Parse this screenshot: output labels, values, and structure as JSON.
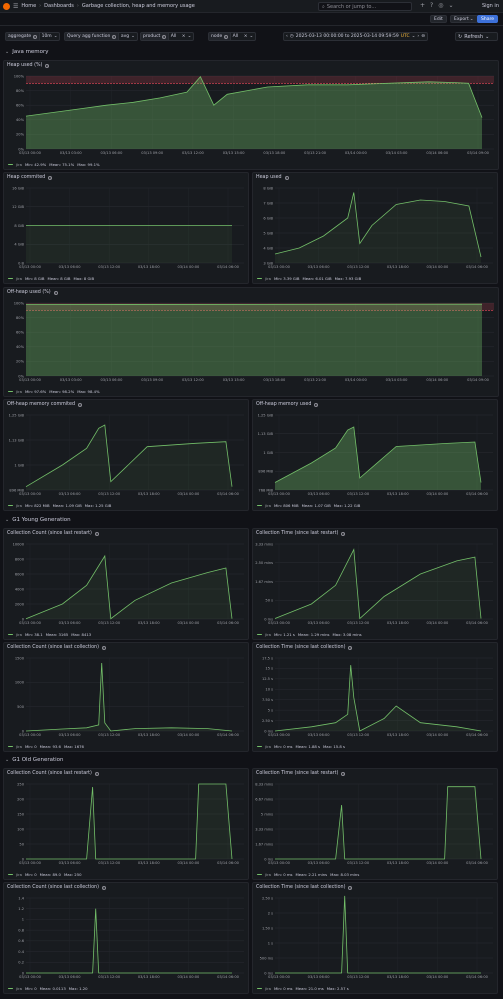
{
  "topbar": {
    "home": "Home",
    "dashboards": "Dashboards",
    "title": "Garbage collection, heap and memory usage",
    "search_placeholder": "Search or jump to...",
    "shortcut": "ctrl+k",
    "sign_in": "Sign in"
  },
  "actions": {
    "edit": "Edit",
    "export": "Export",
    "share": "Share"
  },
  "variables": {
    "aggregate_label": "aggregate",
    "aggregate_value": "10m",
    "query_fn_label": "Query agg function",
    "query_fn_value": "avg",
    "product_label": "product",
    "product_value": "All",
    "node_label": "node",
    "node_value": "All"
  },
  "time": {
    "range": "2025-03-13 00:00:00 to 2025-03-14 09:59:59",
    "tz": "UTC",
    "refresh": "Refresh"
  },
  "colors": {
    "series": "#73bf69",
    "threshold": "#f2495c",
    "bg": "#111217",
    "panel": "#181b1f"
  },
  "rows": {
    "java": "Java memory",
    "young": "G1 Young Generation",
    "old": "G1 Old Generation"
  },
  "panels": [
    {
      "id": "heap_pct",
      "title": "Heap used (%)",
      "series": "jira",
      "legend": {
        "min": "Min: 42.9%",
        "mean": "Mean: 75.1%",
        "max": "Max: 99.1%"
      },
      "yticks": [
        "100%",
        "80%",
        "60%",
        "40%",
        "20%",
        "0%"
      ],
      "xticks": [
        "03/13 00:00",
        "03/13 03:00",
        "03/13 06:00",
        "03/13 09:00",
        "03/13 12:00",
        "03/13 15:00",
        "03/13 18:00",
        "03/13 21:00",
        "03/14 00:00",
        "03/14 03:00",
        "03/14 06:00",
        "03/14 09:00"
      ]
    },
    {
      "id": "heap_committed",
      "title": "Heap commited",
      "series": "jira",
      "legend": {
        "min": "Min: 8 GiB",
        "mean": "Mean: 8 GiB",
        "max": "Max: 8 GiB"
      },
      "yticks": [
        "16 GiB",
        "12 GiB",
        "8 GiB",
        "4 GiB",
        "0 B"
      ],
      "xticks": [
        "03/13 00:00",
        "03/13 06:00",
        "03/13 12:00",
        "03/13 18:00",
        "03/14 00:00",
        "03/14 06:00"
      ]
    },
    {
      "id": "heap_used",
      "title": "Heap used",
      "series": "jira",
      "legend": {
        "min": "Min: 3.39 GiB",
        "mean": "Mean: 6.01 GiB",
        "max": "Max: 7.93 GiB"
      },
      "yticks": [
        "8 GiB",
        "7 GiB",
        "6 GiB",
        "5 GiB",
        "4 GiB",
        "3 GiB"
      ],
      "xticks": [
        "03/13 00:00",
        "03/13 06:00",
        "03/13 12:00",
        "03/13 18:00",
        "03/14 00:00",
        "03/14 06:00"
      ]
    },
    {
      "id": "offheap_pct",
      "title": "Off-heap used (%)",
      "series": "jira",
      "legend": {
        "min": "Min: 97.6%",
        "mean": "Mean: 98.2%",
        "max": "Max: 98.4%"
      },
      "yticks": [
        "100%",
        "80%",
        "60%",
        "40%",
        "20%",
        "0%"
      ],
      "xticks": [
        "03/13 00:00",
        "03/13 03:00",
        "03/13 06:00",
        "03/13 09:00",
        "03/13 12:00",
        "03/13 15:00",
        "03/13 18:00",
        "03/13 21:00",
        "03/14 00:00",
        "03/14 03:00",
        "03/14 06:00",
        "03/14 09:00"
      ]
    },
    {
      "id": "offheap_committed",
      "title": "Off-heap memory commited",
      "series": "jira",
      "legend": {
        "min": "Min: 822 MiB",
        "mean": "Mean: 1.09 GiB",
        "max": "Max: 1.25 GiB"
      },
      "yticks": [
        "1.25 GiB",
        "1.13 GiB",
        "1 GiB",
        "896 MiB"
      ],
      "xticks": [
        "03/13 00:00",
        "03/13 06:00",
        "03/13 12:00",
        "03/13 18:00",
        "03/14 00:00",
        "03/14 06:00"
      ]
    },
    {
      "id": "offheap_used",
      "title": "Off-heap memory used",
      "series": "jira",
      "legend": {
        "min": "Min: 806 MiB",
        "mean": "Mean: 1.07 GiB",
        "max": "Max: 1.22 GiB"
      },
      "yticks": [
        "1.25 GiB",
        "1.13 GiB",
        "1 GiB",
        "896 MiB",
        "768 MiB"
      ],
      "xticks": [
        "03/13 00:00",
        "03/13 06:00",
        "03/13 12:00",
        "03/13 18:00",
        "03/14 00:00",
        "03/14 06:00"
      ]
    },
    {
      "id": "young_cnt_restart",
      "title": "Collection Count (since last restart)",
      "series": "jira",
      "legend": {
        "min": "Min: 38.1",
        "mean": "Mean: 3165",
        "max": "Max: 8413"
      },
      "yticks": [
        "10000",
        "8000",
        "6000",
        "4000",
        "2000",
        "0"
      ],
      "xticks": [
        "03/13 00:00",
        "03/13 06:00",
        "03/13 12:00",
        "03/13 18:00",
        "03/14 00:00",
        "03/14 06:00"
      ]
    },
    {
      "id": "young_time_restart",
      "title": "Collection Time (since last restart)",
      "series": "jira",
      "legend": {
        "min": "Min: 1.21 s",
        "mean": "Mean: 1.29 mins",
        "max": "Max: 3.08 mins"
      },
      "yticks": [
        "3.33 mins",
        "2.50 mins",
        "1.67 mins",
        "50 s",
        "0 ms"
      ],
      "xticks": [
        "03/13 00:00",
        "03/13 06:00",
        "03/13 12:00",
        "03/13 18:00",
        "03/14 00:00",
        "03/14 06:00"
      ]
    },
    {
      "id": "young_cnt_coll",
      "title": "Collection Count (since last collection)",
      "series": "jira",
      "legend": {
        "min": "Min: 0",
        "mean": "Mean: 93.6",
        "max": "Max: 1676"
      },
      "yticks": [
        "1500",
        "1000",
        "500",
        "0"
      ],
      "xticks": [
        "03/13 00:00",
        "03/13 06:00",
        "03/13 12:00",
        "03/13 18:00",
        "03/14 00:00",
        "03/14 06:00"
      ]
    },
    {
      "id": "young_time_coll",
      "title": "Collection Time (since last collection)",
      "series": "jira",
      "legend": {
        "min": "Min: 0 ms",
        "mean": "Mean: 1.88 s",
        "max": "Max: 15.8 s"
      },
      "yticks": [
        "17.5 s",
        "15 s",
        "12.5 s",
        "10 s",
        "7.50 s",
        "5 s",
        "2.50 s",
        "0 ms"
      ],
      "xticks": [
        "03/13 00:00",
        "03/13 06:00",
        "03/13 12:00",
        "03/13 18:00",
        "03/14 00:00",
        "03/14 06:00"
      ]
    },
    {
      "id": "old_cnt_restart",
      "title": "Collection Count (since last restart)",
      "series": "jira",
      "legend": {
        "min": "Min: 0",
        "mean": "Mean: 89.0",
        "max": "Max: 250"
      },
      "yticks": [
        "250",
        "200",
        "150",
        "100",
        "50",
        "0"
      ],
      "xticks": [
        "03/13 00:00",
        "03/13 06:00",
        "03/13 12:00",
        "03/13 18:00",
        "03/14 00:00",
        "03/14 06:00"
      ]
    },
    {
      "id": "old_time_restart",
      "title": "Collection Time (since last restart)",
      "series": "jira",
      "legend": {
        "min": "Min: 0 ms",
        "mean": "Mean: 2.21 mins",
        "max": "Max: 8.03 mins"
      },
      "yticks": [
        "8.33 mins",
        "6.67 mins",
        "5 mins",
        "3.33 mins",
        "1.67 mins",
        "0 ms"
      ],
      "xticks": [
        "03/13 00:00",
        "03/13 06:00",
        "03/13 12:00",
        "03/13 18:00",
        "03/14 00:00",
        "03/14 06:00"
      ]
    },
    {
      "id": "old_cnt_coll",
      "title": "Collection Count (since last collection)",
      "series": "jira",
      "legend": {
        "min": "Min: 0",
        "mean": "Mean: 0.0113",
        "max": "Max: 1.20"
      },
      "yticks": [
        "1.4",
        "1.2",
        "1",
        "0.8",
        "0.6",
        "0.4",
        "0.2",
        "0"
      ],
      "xticks": [
        "03/13 00:00",
        "03/13 06:00",
        "03/13 12:00",
        "03/13 18:00",
        "03/14 00:00",
        "03/14 06:00"
      ]
    },
    {
      "id": "old_time_coll",
      "title": "Collection Time (since last collection)",
      "series": "jira",
      "legend": {
        "min": "Min: 0 ms",
        "mean": "Mean: 21.0 ms",
        "max": "Max: 2.57 s"
      },
      "yticks": [
        "2.50 s",
        "2 s",
        "1.50 s",
        "1 s",
        "500 ms",
        "0 ms"
      ],
      "xticks": [
        "03/13 00:00",
        "03/13 06:00",
        "03/13 12:00",
        "03/13 18:00",
        "03/14 00:00",
        "03/14 06:00"
      ]
    }
  ],
  "chart_data": [
    {
      "type": "area",
      "title": "Heap used (%)",
      "ylim": [
        0,
        100
      ],
      "x": [
        0,
        2,
        4,
        6,
        8,
        10,
        12,
        13,
        14,
        15,
        18,
        21,
        24,
        27,
        30,
        32,
        33,
        34
      ],
      "series": [
        {
          "name": "jira",
          "values": [
            45,
            50,
            55,
            60,
            64,
            70,
            78,
            99,
            60,
            75,
            85,
            88,
            88,
            90,
            92,
            91,
            90,
            43
          ]
        }
      ]
    },
    {
      "type": "line",
      "title": "Heap commited",
      "ylim": [
        0,
        16
      ],
      "x": [
        0,
        34
      ],
      "series": [
        {
          "name": "jira",
          "values": [
            8,
            8
          ]
        }
      ]
    },
    {
      "type": "line",
      "title": "Heap used",
      "ylim": [
        3,
        8
      ],
      "x": [
        0,
        4,
        8,
        12,
        13,
        14,
        16,
        20,
        24,
        28,
        32,
        34
      ],
      "series": [
        {
          "name": "jira",
          "values": [
            3.6,
            4,
            4.8,
            6,
            7.7,
            4.3,
            5.5,
            6.9,
            7.2,
            7.1,
            6.8,
            3.4
          ]
        }
      ]
    },
    {
      "type": "area",
      "title": "Off-heap used (%)",
      "ylim": [
        0,
        100
      ],
      "x": [
        0,
        34
      ],
      "series": [
        {
          "name": "jira",
          "values": [
            98,
            98.4
          ]
        }
      ]
    },
    {
      "type": "line",
      "title": "Off-heap memory commited",
      "ylim": [
        0.8,
        1.25
      ],
      "x": [
        0,
        6,
        10,
        12,
        13,
        14,
        20,
        28,
        33,
        34
      ],
      "series": [
        {
          "name": "jira",
          "values": [
            0.82,
            0.95,
            1.05,
            1.17,
            1.19,
            0.85,
            1.06,
            1.08,
            1.09,
            0.82
          ]
        }
      ]
    },
    {
      "type": "area",
      "title": "Off-heap memory used",
      "ylim": [
        0.75,
        1.25
      ],
      "x": [
        0,
        6,
        10,
        12,
        13,
        14,
        20,
        28,
        33,
        34
      ],
      "series": [
        {
          "name": "jira",
          "values": [
            0.8,
            0.93,
            1.03,
            1.15,
            1.17,
            0.83,
            1.04,
            1.06,
            1.07,
            0.8
          ]
        }
      ]
    },
    {
      "type": "line",
      "title": "Collection Count (since last restart)",
      "ylim": [
        0,
        10000
      ],
      "x": [
        0,
        6,
        10,
        13,
        14,
        18,
        24,
        30,
        33,
        34
      ],
      "series": [
        {
          "name": "jira",
          "values": [
            38,
            2000,
            4500,
            8400,
            40,
            2500,
            4800,
            6200,
            6800,
            40
          ]
        }
      ]
    },
    {
      "type": "line",
      "title": "Collection Time (since last restart)",
      "ylim": [
        0,
        200
      ],
      "x": [
        0,
        6,
        10,
        13,
        14,
        18,
        24,
        30,
        33,
        34
      ],
      "series": [
        {
          "name": "jira",
          "values": [
            1.2,
            40,
            90,
            185,
            1.2,
            60,
            120,
            155,
            165,
            1.2
          ]
        }
      ]
    },
    {
      "type": "line",
      "title": "Collection Count (since last collection)",
      "ylim": [
        0,
        1800
      ],
      "x": [
        0,
        6,
        10,
        12,
        12.5,
        13,
        14,
        18,
        24,
        30,
        34
      ],
      "series": [
        {
          "name": "jira",
          "values": [
            0,
            50,
            80,
            150,
            1676,
            200,
            0,
            60,
            80,
            60,
            0
          ]
        }
      ]
    },
    {
      "type": "line",
      "title": "Collection Time (since last collection)",
      "ylim": [
        0,
        17.5
      ],
      "x": [
        0,
        6,
        10,
        12,
        12.5,
        13,
        14,
        18,
        20,
        24,
        30,
        34
      ],
      "series": [
        {
          "name": "jira",
          "values": [
            0,
            1,
            2,
            4,
            15.8,
            8,
            0,
            3,
            6,
            2,
            1,
            0
          ]
        }
      ]
    },
    {
      "type": "line",
      "title": "Collection Count (since last restart)",
      "ylim": [
        0,
        250
      ],
      "x": [
        0,
        10,
        11,
        11.5,
        12,
        20,
        28,
        28.5,
        33,
        34
      ],
      "series": [
        {
          "name": "jira",
          "values": [
            0,
            0,
            240,
            0,
            0,
            0,
            0,
            250,
            250,
            0
          ]
        }
      ]
    },
    {
      "type": "line",
      "title": "Collection Time (since last restart)",
      "ylim": [
        0,
        500
      ],
      "x": [
        0,
        10,
        11,
        11.5,
        12,
        20,
        28,
        28.5,
        33,
        34
      ],
      "series": [
        {
          "name": "jira",
          "values": [
            0,
            0,
            360,
            0,
            0,
            0,
            0,
            482,
            482,
            0
          ]
        }
      ]
    },
    {
      "type": "line",
      "title": "Collection Count (since last collection)",
      "ylim": [
        0,
        1.4
      ],
      "x": [
        0,
        11,
        11.5,
        12,
        34
      ],
      "series": [
        {
          "name": "jira",
          "values": [
            0,
            0,
            1.2,
            0,
            0
          ]
        }
      ]
    },
    {
      "type": "line",
      "title": "Collection Time (since last collection)",
      "ylim": [
        0,
        2.5
      ],
      "x": [
        0,
        11,
        11.5,
        12,
        34
      ],
      "series": [
        {
          "name": "jira",
          "values": [
            0,
            0,
            2.57,
            0,
            0
          ]
        }
      ]
    }
  ]
}
